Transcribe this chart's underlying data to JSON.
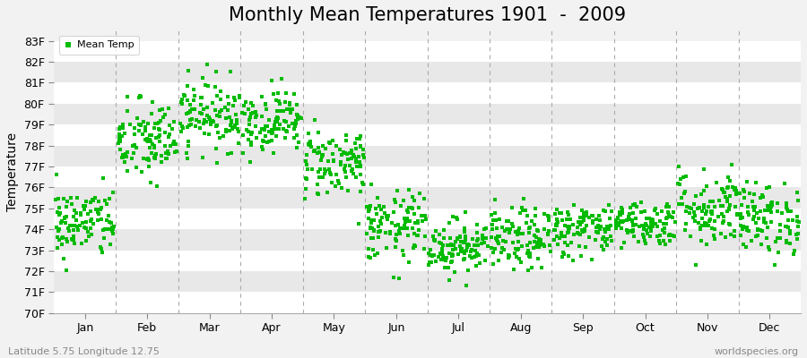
{
  "title": "Monthly Mean Temperatures 1901  -  2009",
  "ylabel": "Temperature",
  "xlabel_labels": [
    "Jan",
    "Feb",
    "Mar",
    "Apr",
    "May",
    "Jun",
    "Jul",
    "Aug",
    "Sep",
    "Oct",
    "Nov",
    "Dec"
  ],
  "legend_label": "Mean Temp",
  "bottom_left_text": "Latitude 5.75 Longitude 12.75",
  "bottom_right_text": "worldspecies.org",
  "ylim": [
    70,
    83.5
  ],
  "ytick_values": [
    70,
    71,
    72,
    73,
    74,
    75,
    76,
    77,
    78,
    79,
    80,
    81,
    82,
    83
  ],
  "dot_color": "#00bb00",
  "dot_size": 6,
  "background_color": "#f2f2f2",
  "band_colors": [
    "#ffffff",
    "#e8e8e8"
  ],
  "dashed_line_color": "#aaaaaa",
  "monthly_means": [
    74.3,
    78.2,
    79.5,
    79.2,
    77.2,
    74.1,
    73.2,
    73.5,
    74.0,
    74.3,
    75.0,
    74.5
  ],
  "monthly_stds": [
    0.85,
    1.0,
    0.85,
    0.75,
    0.85,
    0.85,
    0.65,
    0.75,
    0.65,
    0.55,
    0.95,
    0.85
  ],
  "n_years": 109,
  "seed": 42,
  "title_fontsize": 15,
  "axis_fontsize": 9,
  "label_fontsize": 10
}
